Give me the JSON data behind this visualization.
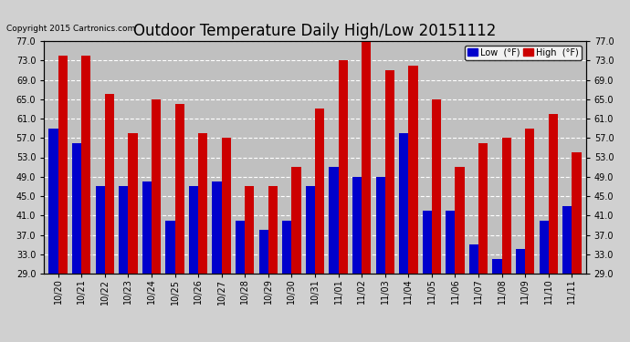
{
  "title": "Outdoor Temperature Daily High/Low 20151112",
  "copyright": "Copyright 2015 Cartronics.com",
  "categories": [
    "10/20",
    "10/21",
    "10/22",
    "10/23",
    "10/24",
    "10/25",
    "10/26",
    "10/27",
    "10/28",
    "10/29",
    "10/30",
    "10/31",
    "11/01",
    "11/02",
    "11/03",
    "11/04",
    "11/05",
    "11/06",
    "11/07",
    "11/08",
    "11/09",
    "11/10",
    "11/11"
  ],
  "low_values": [
    59,
    56,
    47,
    47,
    48,
    40,
    47,
    48,
    40,
    38,
    40,
    47,
    51,
    49,
    49,
    58,
    42,
    42,
    35,
    32,
    34,
    40,
    43
  ],
  "high_values": [
    74,
    74,
    66,
    58,
    65,
    64,
    58,
    57,
    47,
    47,
    51,
    63,
    73,
    77,
    71,
    72,
    65,
    51,
    56,
    57,
    59,
    62,
    54
  ],
  "low_color": "#0000cc",
  "high_color": "#cc0000",
  "bg_color": "#d0d0d0",
  "plot_bg_color": "#c0c0c0",
  "grid_color": "white",
  "ylim_min": 29.0,
  "ylim_max": 77.0,
  "yticks": [
    29.0,
    33.0,
    37.0,
    41.0,
    45.0,
    49.0,
    53.0,
    57.0,
    61.0,
    65.0,
    69.0,
    73.0,
    77.0
  ],
  "title_fontsize": 12,
  "legend_label_low": "Low  (°F)",
  "legend_label_high": "High  (°F)",
  "bar_width": 0.4,
  "figwidth": 6.9,
  "figheight": 3.75,
  "dpi": 100
}
